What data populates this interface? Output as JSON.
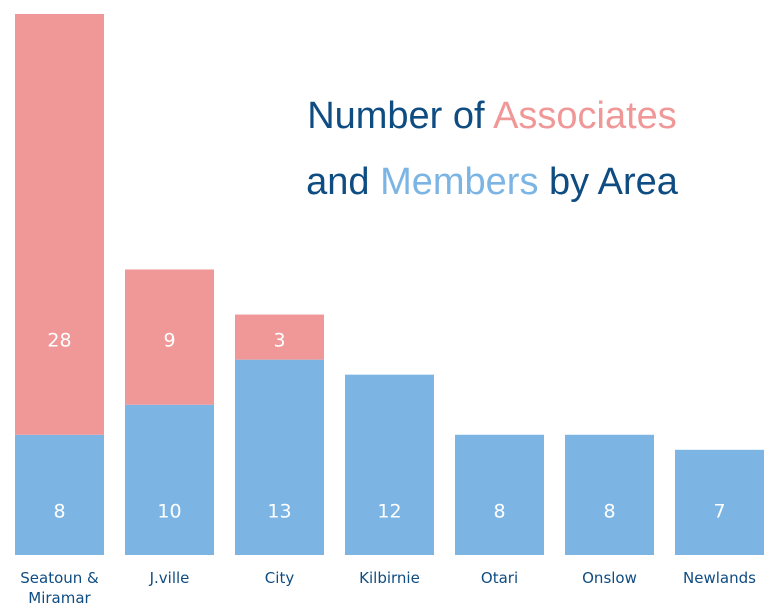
{
  "chart_data": {
    "type": "stacked_bar",
    "title": [
      "Number of Associates",
      "and Members by Area"
    ],
    "title_color": "#0f4c81",
    "categories": [
      "Seatoun & Miramar",
      "J.ville",
      "City",
      "Kilbirnie",
      "Otari",
      "Onslow",
      "Newlands"
    ],
    "series": [
      {
        "name": "Members",
        "color": "#7cb5e4",
        "values": [
          8,
          10,
          13,
          12,
          8,
          8,
          7
        ]
      },
      {
        "name": "Associates",
        "color": "#f09898",
        "values": [
          28,
          9,
          3,
          null,
          null,
          null,
          null
        ]
      }
    ]
  }
}
